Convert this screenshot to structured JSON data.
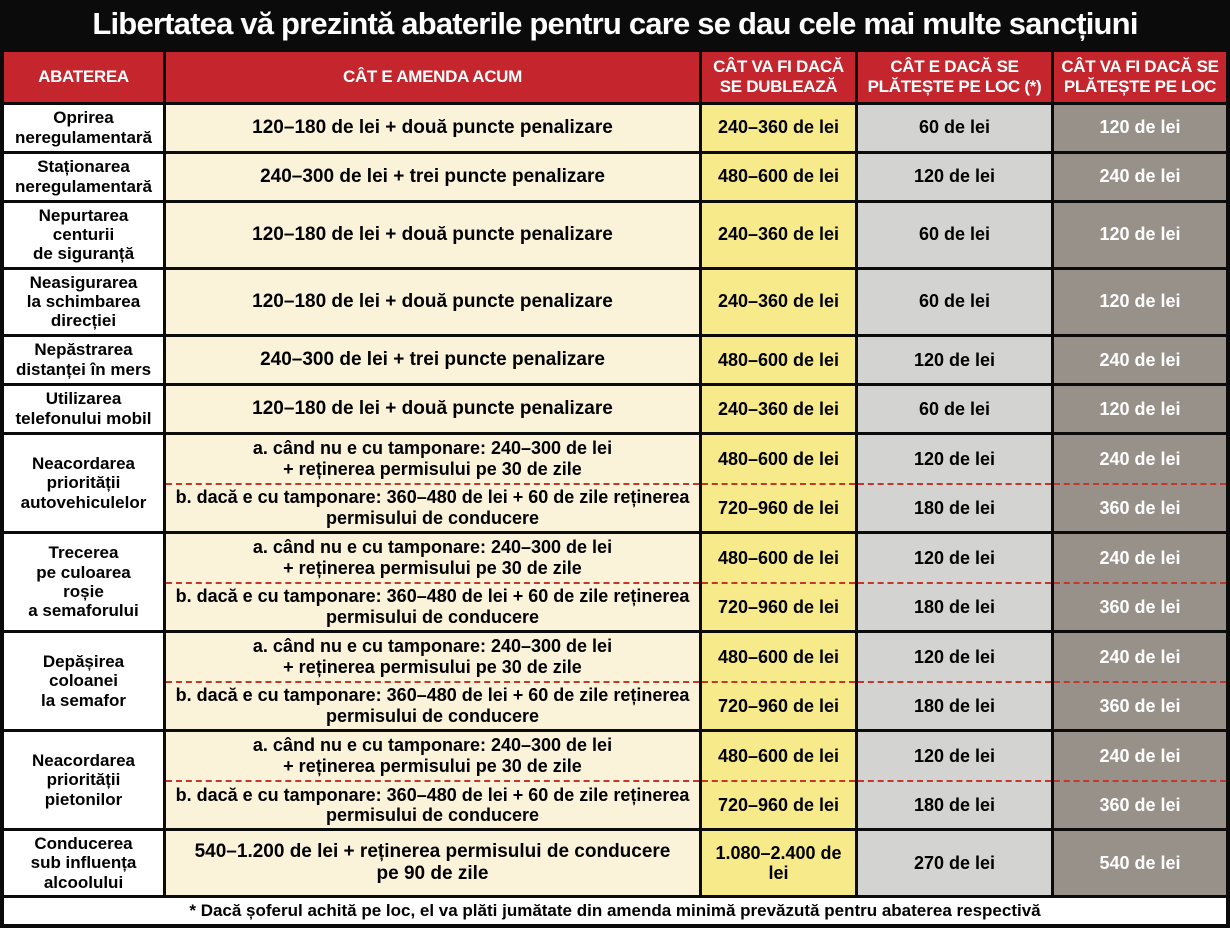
{
  "title": "Libertatea vă prezintă abaterile pentru care se dau cele mai multe sancțiuni",
  "chart_data": {
    "type": "table",
    "title": "Libertatea vă prezintă abaterile pentru care se dau cele mai multe sancțiuni",
    "columns": [
      "ABATEREA",
      "CÂT E AMENDA ACUM",
      "CÂT VA FI DACĂ\nSE DUBLEAZĂ",
      "CÂT E DACĂ SE\nPLĂTEȘTE PE LOC (*)",
      "CÂT VA FI DACĂ SE\nPLĂTEȘTE PE LOC"
    ],
    "rows": [
      {
        "label": "Oprirea\nneregulamentară",
        "subs": [
          {
            "now": "120–180 de lei + două puncte penalizare",
            "doubled": "240–360 de lei",
            "on_spot_now": "60 de lei",
            "on_spot_future": "120 de lei"
          }
        ]
      },
      {
        "label": "Staționarea\nneregulamentară",
        "subs": [
          {
            "now": "240–300 de lei + trei puncte penalizare",
            "doubled": "480–600 de lei",
            "on_spot_now": "120 de lei",
            "on_spot_future": "240 de lei"
          }
        ]
      },
      {
        "label": "Nepurtarea\ncenturii\nde siguranță",
        "subs": [
          {
            "now": "120–180 de lei + două puncte penalizare",
            "doubled": "240–360 de lei",
            "on_spot_now": "60 de lei",
            "on_spot_future": "120 de lei"
          }
        ]
      },
      {
        "label": "Neasigurarea\nla schimbarea\ndirecției",
        "subs": [
          {
            "now": "120–180 de lei + două puncte penalizare",
            "doubled": "240–360 de lei",
            "on_spot_now": "60 de lei",
            "on_spot_future": "120 de lei"
          }
        ]
      },
      {
        "label": "Nepăstrarea\ndistanței în mers",
        "subs": [
          {
            "now": "240–300 de lei + trei puncte penalizare",
            "doubled": "480–600 de lei",
            "on_spot_now": "120 de lei",
            "on_spot_future": "240 de lei"
          }
        ]
      },
      {
        "label": "Utilizarea\ntelefonului mobil",
        "subs": [
          {
            "now": "120–180 de lei + două puncte penalizare",
            "doubled": "240–360 de lei",
            "on_spot_now": "60 de lei",
            "on_spot_future": "120 de lei"
          }
        ]
      },
      {
        "label": "Neacordarea\npriorității\nautovehiculelor",
        "subs": [
          {
            "now": "a. când nu e cu tamponare: 240–300 de lei\n+ reținerea permisului pe 30 de zile",
            "doubled": "480–600 de lei",
            "on_spot_now": "120 de lei",
            "on_spot_future": "240 de lei"
          },
          {
            "now": "b. dacă e cu tamponare: 360–480 de lei + 60 de zile reținerea\npermisului de conducere",
            "doubled": "720–960 de lei",
            "on_spot_now": "180 de lei",
            "on_spot_future": "360 de lei"
          }
        ]
      },
      {
        "label": "Trecerea\npe culoarea\nroșie\na semaforului",
        "subs": [
          {
            "now": "a. când nu e cu tamponare: 240–300 de lei\n+ reținerea permisului pe 30 de zile",
            "doubled": "480–600 de lei",
            "on_spot_now": "120 de lei",
            "on_spot_future": "240 de lei"
          },
          {
            "now": "b. dacă e cu tamponare: 360–480 de lei + 60 de zile reținerea\npermisului de conducere",
            "doubled": "720–960 de lei",
            "on_spot_now": "180 de lei",
            "on_spot_future": "360 de lei"
          }
        ]
      },
      {
        "label": "Depășirea\ncoloanei\nla semafor",
        "subs": [
          {
            "now": "a. când nu e cu tamponare: 240–300 de lei\n+ reținerea permisului pe 30 de zile",
            "doubled": "480–600 de lei",
            "on_spot_now": "120 de lei",
            "on_spot_future": "240 de lei"
          },
          {
            "now": "b. dacă e cu tamponare: 360–480 de lei + 60 de zile reținerea\npermisului de conducere",
            "doubled": "720–960 de lei",
            "on_spot_now": "180 de lei",
            "on_spot_future": "360 de lei"
          }
        ]
      },
      {
        "label": "Neacordarea\npriorității\npietonilor",
        "subs": [
          {
            "now": "a. când nu e cu tamponare: 240–300 de lei\n+ reținerea permisului pe 30 de zile",
            "doubled": "480–600 de lei",
            "on_spot_now": "120 de lei",
            "on_spot_future": "240 de lei"
          },
          {
            "now": "b. dacă e cu tamponare: 360–480 de lei + 60 de zile reținerea\npermisului de conducere",
            "doubled": "720–960 de lei",
            "on_spot_now": "180 de lei",
            "on_spot_future": "360 de lei"
          }
        ]
      },
      {
        "label": "Conducerea\nsub influența\nalcoolului",
        "subs": [
          {
            "now": "540–1.200 de lei + reținerea permisului de conducere\npe 90 de zile",
            "doubled": "1.080–2.400 de lei",
            "on_spot_now": "270 de lei",
            "on_spot_future": "540 de lei"
          }
        ]
      }
    ],
    "footnote": "* Dacă șoferul achită pe loc, el va plăti jumătate din amenda minimă prevăzută pentru abaterea respectivă"
  },
  "colors": {
    "title_bg": "#0b0b0b",
    "header_red": "#c5262e",
    "now_cream": "#faf3da",
    "doubled_yellow": "#f6ea8b",
    "on_spot_gray": "#d3d3d2",
    "on_spot_dark_gray": "#97918a",
    "divider_red": "#c0392b",
    "grid_black": "#0b0b0b",
    "header_text": "#ffffff",
    "body_text": "#000000"
  }
}
